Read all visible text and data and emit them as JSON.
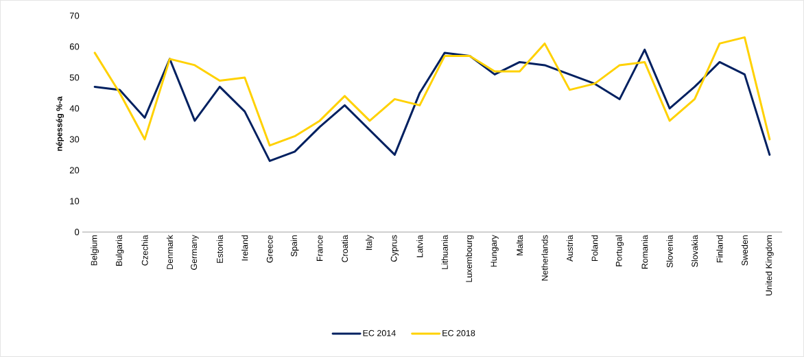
{
  "chart_data": {
    "type": "line",
    "ylabel": "népesség %-a",
    "categories": [
      "Belgium",
      "Bulgaria",
      "Czechia",
      "Denmark",
      "Germany",
      "Estonia",
      "Ireland",
      "Greece",
      "Spain",
      "France",
      "Croatia",
      "Italy",
      "Cyprus",
      "Latvia",
      "Lithuania",
      "Luxembourg",
      "Hungary",
      "Malta",
      "Netherlands",
      "Austria",
      "Poland",
      "Portugal",
      "Romania",
      "Slovenia",
      "Slovakia",
      "Finland",
      "Sweden",
      "United Kingdom"
    ],
    "series": [
      {
        "name": "EC 2014",
        "color": "#002060",
        "values": [
          47,
          46,
          37,
          56,
          36,
          47,
          39,
          23,
          26,
          34,
          41,
          33,
          25,
          45,
          58,
          57,
          51,
          55,
          54,
          51,
          48,
          43,
          59,
          40,
          47,
          55,
          51,
          25
        ]
      },
      {
        "name": "EC 2018",
        "color": "#FFD100",
        "values": [
          58,
          45,
          30,
          56,
          54,
          49,
          50,
          28,
          31,
          36,
          44,
          36,
          43,
          41,
          57,
          57,
          52,
          52,
          61,
          46,
          48,
          54,
          55,
          36,
          43,
          61,
          63,
          30
        ]
      }
    ],
    "ylim": [
      0,
      70
    ],
    "yticks": [
      0,
      10,
      20,
      30,
      40,
      50,
      60,
      70
    ],
    "legend": "bottom"
  }
}
